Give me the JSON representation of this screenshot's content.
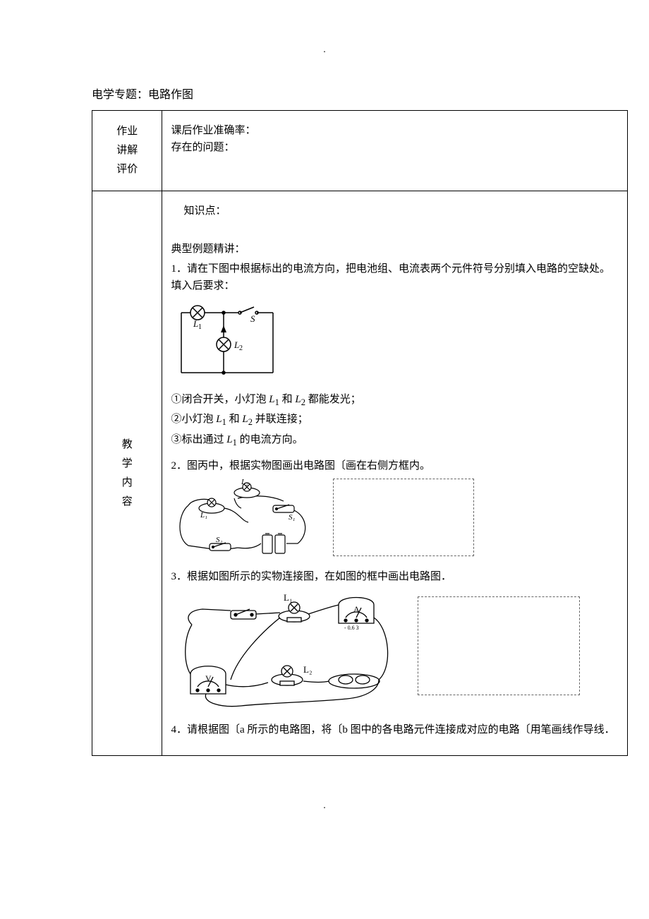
{
  "header_dot": ".",
  "footer_dot": ".",
  "title": "电学专题：电路作图",
  "row1": {
    "left": "作业\n讲解\n评价",
    "line1": "课后作业准确率：",
    "line2": "存在的问题："
  },
  "row2": {
    "left": "教\n学\n内\n容",
    "knowledge": "知识点：",
    "examples_label": "典型例题精讲：",
    "p1": {
      "intro": "1．请在下图中根据标出的电流方向，把电池组、电流表两个元件符号分别填入电路的空缺处。填入后要求：",
      "diagram": {
        "L1": "L₁",
        "L2": "L₂",
        "S": "S",
        "stroke": "#000000",
        "stroke_width": 1.5,
        "bulb_radius": 10
      },
      "cond1_pre": "①闭合开关，小灯泡 ",
      "cond1_L1": "L",
      "cond1_sub1": "1",
      "cond1_mid": " 和 ",
      "cond1_L2": "L",
      "cond1_sub2": "2",
      "cond1_post": " 都能发光；",
      "cond2_pre": "②小灯泡 ",
      "cond2_L1": "L",
      "cond2_sub1": "1",
      "cond2_mid": " 和 ",
      "cond2_L2": "L",
      "cond2_sub2": "2",
      "cond2_post": " 并联连接；",
      "cond3_pre": "③标出通过 ",
      "cond3_L1": "L",
      "cond3_sub1": "1",
      "cond3_post": " 的电流方向。"
    },
    "p2": {
      "text": "2．图丙中，根据实物图画出电路图〔画在右侧方框内。",
      "diagram": {
        "L1": "L₁",
        "L2": "L₂",
        "S1": "S₁",
        "S2": "S₂",
        "stroke": "#000000"
      }
    },
    "p3": {
      "text": "3．根据如图所示的实物连接图，在如图的框中画出电路图．",
      "diagram": {
        "L1": "L₁",
        "L2": "L₂",
        "A": "A",
        "V": "V",
        "range": "- 0.6 3",
        "stroke": "#000000"
      }
    },
    "p4": {
      "text": "4．请根据图〔a 所示的电路图，将〔b 图中的各电路元件连接成对应的电路〔用笔画线作导线．"
    }
  }
}
